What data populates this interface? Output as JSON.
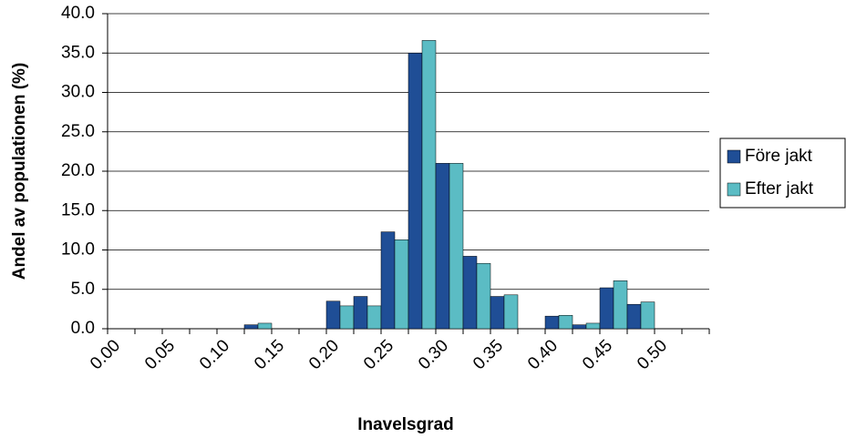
{
  "chart_data": {
    "type": "bar",
    "x_label": "Inavelsgrad",
    "y_label": "Andel av populationen (%)",
    "categories": [
      "0.00",
      null,
      "0.05",
      null,
      "0.10",
      null,
      "0.15",
      null,
      "0.20",
      null,
      "0.25",
      null,
      "0.30",
      null,
      "0.35",
      null,
      "0.40",
      null,
      "0.45",
      null,
      "0.50",
      null
    ],
    "series": [
      {
        "name": "Före jakt",
        "color": "#1f4e96",
        "values": [
          0,
          0,
          0,
          0,
          0,
          0.5,
          0,
          0,
          3.5,
          4.1,
          12.3,
          35.0,
          21.0,
          9.2,
          4.1,
          0,
          1.6,
          0.5,
          5.2,
          3.1,
          0,
          0
        ]
      },
      {
        "name": "Efter jakt",
        "color": "#5bbcc4",
        "values": [
          0,
          0,
          0,
          0,
          0,
          0.7,
          0,
          0,
          2.9,
          2.9,
          11.3,
          36.6,
          21.0,
          8.3,
          4.3,
          0,
          1.7,
          0.7,
          6.1,
          3.4,
          0,
          0
        ]
      }
    ],
    "ylim": [
      0,
      40
    ],
    "yticks": [
      {
        "value": 0,
        "label": "0.0"
      },
      {
        "value": 5,
        "label": "5.0"
      },
      {
        "value": 10,
        "label": "10.0"
      },
      {
        "value": 15,
        "label": "15.0"
      },
      {
        "value": 20,
        "label": "20.0"
      },
      {
        "value": 25,
        "label": "25.0"
      },
      {
        "value": 30,
        "label": "30.0"
      },
      {
        "value": 35,
        "label": "35.0"
      },
      {
        "value": 40,
        "label": "40.0"
      }
    ],
    "grid": true,
    "legend": "right"
  }
}
